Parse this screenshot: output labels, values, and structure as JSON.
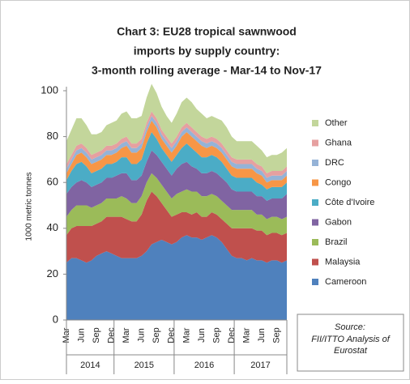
{
  "chart_data": {
    "type": "stacked_area",
    "title": [
      "Chart 3: EU28 tropical sawnwood",
      "imports by supply country:",
      "3-month rolling average - Mar-14 to Nov-17"
    ],
    "ylabel": "1000 metric tonnes",
    "ylim": [
      0,
      100
    ],
    "yticks": [
      0,
      20,
      40,
      60,
      80,
      100
    ],
    "categories": [
      "Mar",
      null,
      null,
      "Jun",
      null,
      null,
      "Sep",
      null,
      null,
      "Dec",
      null,
      null,
      "Mar",
      null,
      null,
      "Jun",
      null,
      null,
      "Sep",
      null,
      null,
      "Dec",
      null,
      null,
      "Mar",
      null,
      null,
      "Jun",
      null,
      null,
      "Sep",
      null,
      null,
      "Dec",
      null,
      null,
      "Mar",
      null,
      null,
      "Jun",
      null,
      null,
      "Sep",
      null,
      null
    ],
    "years": [
      "2014",
      "2015",
      "2016",
      "2017"
    ],
    "series": [
      {
        "name": "Cameroon",
        "color": "#4f81bd",
        "values": [
          25,
          27,
          27,
          26,
          25,
          26,
          28,
          29,
          30,
          29,
          28,
          27,
          27,
          27,
          27,
          28,
          30,
          33,
          34,
          35,
          34,
          33,
          34,
          36,
          37,
          36,
          36,
          35,
          36,
          37,
          36,
          34,
          31,
          28,
          27,
          27,
          26,
          27,
          26,
          26,
          25,
          26,
          26,
          25,
          26
        ]
      },
      {
        "name": "Malaysia",
        "color": "#c0504d",
        "values": [
          12,
          13,
          14,
          15,
          16,
          15,
          14,
          14,
          15,
          16,
          17,
          18,
          17,
          16,
          16,
          18,
          22,
          23,
          20,
          16,
          14,
          12,
          12,
          11,
          10,
          10,
          11,
          10,
          9,
          10,
          10,
          10,
          11,
          12,
          13,
          13,
          14,
          13,
          13,
          13,
          12,
          12,
          12,
          12,
          12
        ]
      },
      {
        "name": "Brazil",
        "color": "#9bbb59",
        "values": [
          8,
          8,
          9,
          9,
          9,
          8,
          8,
          8,
          8,
          8,
          8,
          9,
          9,
          8,
          8,
          8,
          8,
          8,
          8,
          8,
          8,
          8,
          9,
          9,
          10,
          10,
          9,
          9,
          9,
          8,
          8,
          8,
          8,
          8,
          8,
          8,
          8,
          8,
          7,
          7,
          7,
          7,
          7,
          7,
          7
        ]
      },
      {
        "name": "Gabon",
        "color": "#8064a2",
        "values": [
          10,
          10,
          10,
          11,
          10,
          9,
          9,
          9,
          9,
          9,
          10,
          10,
          11,
          10,
          10,
          9,
          9,
          10,
          10,
          10,
          10,
          10,
          11,
          12,
          12,
          11,
          10,
          10,
          10,
          10,
          10,
          10,
          10,
          9,
          8,
          8,
          8,
          8,
          8,
          8,
          8,
          8,
          8,
          9,
          10
        ]
      },
      {
        "name": "Côte d'Ivoire",
        "color": "#4bacc6",
        "values": [
          6,
          7,
          8,
          8,
          7,
          6,
          6,
          6,
          6,
          6,
          6,
          7,
          7,
          7,
          7,
          7,
          8,
          8,
          7,
          6,
          6,
          6,
          6,
          7,
          8,
          8,
          7,
          7,
          7,
          7,
          7,
          7,
          6,
          6,
          6,
          6,
          6,
          6,
          6,
          5,
          5,
          5,
          5,
          5,
          5
        ]
      },
      {
        "name": "Congo",
        "color": "#f79646",
        "values": [
          3,
          3,
          4,
          4,
          4,
          4,
          4,
          4,
          4,
          4,
          4,
          4,
          5,
          5,
          5,
          5,
          5,
          5,
          5,
          4,
          4,
          4,
          4,
          5,
          5,
          5,
          5,
          5,
          4,
          4,
          4,
          4,
          4,
          4,
          4,
          4,
          4,
          4,
          4,
          4,
          3,
          3,
          3,
          3,
          3
        ]
      },
      {
        "name": "DRC",
        "color": "#95b3d7",
        "values": [
          2,
          2,
          2,
          2,
          2,
          2,
          2,
          2,
          2,
          2,
          2,
          2,
          2,
          2,
          2,
          2,
          2,
          2,
          2,
          2,
          2,
          2,
          2,
          2,
          2,
          2,
          2,
          2,
          2,
          2,
          2,
          2,
          2,
          2,
          2,
          2,
          2,
          2,
          2,
          2,
          2,
          2,
          2,
          2,
          2
        ]
      },
      {
        "name": "Ghana",
        "color": "#e6a0a0",
        "values": [
          2,
          2,
          2,
          2,
          2,
          2,
          2,
          2,
          2,
          2,
          2,
          2,
          2,
          2,
          2,
          2,
          2,
          2,
          2,
          2,
          2,
          2,
          2,
          2,
          2,
          2,
          2,
          2,
          2,
          2,
          2,
          2,
          2,
          2,
          2,
          2,
          2,
          2,
          2,
          2,
          2,
          2,
          2,
          2,
          2
        ]
      },
      {
        "name": "Other",
        "color": "#c3d69b",
        "values": [
          10,
          11,
          12,
          11,
          10,
          9,
          8,
          8,
          9,
          10,
          10,
          11,
          11,
          11,
          11,
          10,
          11,
          12,
          11,
          10,
          9,
          9,
          10,
          11,
          11,
          11,
          10,
          10,
          9,
          9,
          9,
          10,
          10,
          9,
          8,
          8,
          8,
          8,
          8,
          7,
          7,
          7,
          7,
          8,
          8
        ]
      }
    ],
    "source_label": "Source:",
    "source": "FII/ITTO Analysis of Eurostat"
  }
}
